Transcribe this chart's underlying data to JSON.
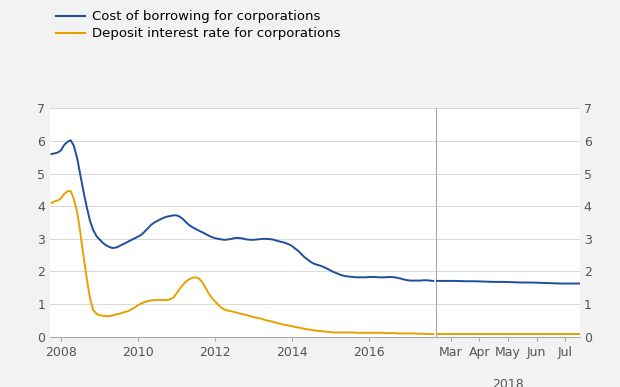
{
  "legend": [
    {
      "label": "Cost of borrowing for corporations",
      "color": "#1f4e9f",
      "lw": 1.5
    },
    {
      "label": "Deposit interest rate for corporations",
      "color": "#e8a000",
      "lw": 1.5
    }
  ],
  "ylim": [
    0,
    7
  ],
  "yticks": [
    0,
    1,
    2,
    3,
    4,
    5,
    6,
    7
  ],
  "left_panel": {
    "xticks_years": [
      2008,
      2010,
      2012,
      2014,
      2016
    ],
    "blue_data": [
      [
        2007.75,
        5.6
      ],
      [
        2007.83,
        5.62
      ],
      [
        2007.92,
        5.65
      ],
      [
        2008.0,
        5.72
      ],
      [
        2008.08,
        5.88
      ],
      [
        2008.17,
        5.98
      ],
      [
        2008.25,
        6.02
      ],
      [
        2008.33,
        5.85
      ],
      [
        2008.42,
        5.45
      ],
      [
        2008.5,
        4.95
      ],
      [
        2008.58,
        4.45
      ],
      [
        2008.67,
        3.95
      ],
      [
        2008.75,
        3.55
      ],
      [
        2008.83,
        3.28
      ],
      [
        2008.92,
        3.08
      ],
      [
        2009.0,
        2.98
      ],
      [
        2009.08,
        2.88
      ],
      [
        2009.17,
        2.8
      ],
      [
        2009.25,
        2.75
      ],
      [
        2009.33,
        2.72
      ],
      [
        2009.42,
        2.73
      ],
      [
        2009.5,
        2.77
      ],
      [
        2009.58,
        2.82
      ],
      [
        2009.67,
        2.87
      ],
      [
        2009.75,
        2.92
      ],
      [
        2009.83,
        2.97
      ],
      [
        2009.92,
        3.02
      ],
      [
        2010.0,
        3.07
      ],
      [
        2010.08,
        3.12
      ],
      [
        2010.17,
        3.22
      ],
      [
        2010.25,
        3.32
      ],
      [
        2010.33,
        3.42
      ],
      [
        2010.42,
        3.5
      ],
      [
        2010.5,
        3.55
      ],
      [
        2010.58,
        3.6
      ],
      [
        2010.67,
        3.65
      ],
      [
        2010.75,
        3.68
      ],
      [
        2010.83,
        3.7
      ],
      [
        2010.92,
        3.72
      ],
      [
        2011.0,
        3.72
      ],
      [
        2011.08,
        3.68
      ],
      [
        2011.17,
        3.6
      ],
      [
        2011.25,
        3.5
      ],
      [
        2011.33,
        3.42
      ],
      [
        2011.42,
        3.35
      ],
      [
        2011.5,
        3.3
      ],
      [
        2011.58,
        3.25
      ],
      [
        2011.67,
        3.2
      ],
      [
        2011.75,
        3.15
      ],
      [
        2011.83,
        3.1
      ],
      [
        2011.92,
        3.05
      ],
      [
        2012.0,
        3.02
      ],
      [
        2012.08,
        3.0
      ],
      [
        2012.17,
        2.98
      ],
      [
        2012.25,
        2.97
      ],
      [
        2012.33,
        2.98
      ],
      [
        2012.42,
        3.0
      ],
      [
        2012.5,
        3.02
      ],
      [
        2012.58,
        3.03
      ],
      [
        2012.67,
        3.02
      ],
      [
        2012.75,
        3.0
      ],
      [
        2012.83,
        2.98
      ],
      [
        2012.92,
        2.97
      ],
      [
        2013.0,
        2.97
      ],
      [
        2013.08,
        2.98
      ],
      [
        2013.17,
        2.99
      ],
      [
        2013.25,
        3.0
      ],
      [
        2013.33,
        3.0
      ],
      [
        2013.42,
        2.99
      ],
      [
        2013.5,
        2.98
      ],
      [
        2013.58,
        2.95
      ],
      [
        2013.67,
        2.92
      ],
      [
        2013.75,
        2.9
      ],
      [
        2013.83,
        2.87
      ],
      [
        2013.92,
        2.83
      ],
      [
        2014.0,
        2.78
      ],
      [
        2014.08,
        2.7
      ],
      [
        2014.17,
        2.62
      ],
      [
        2014.25,
        2.52
      ],
      [
        2014.33,
        2.43
      ],
      [
        2014.42,
        2.35
      ],
      [
        2014.5,
        2.28
      ],
      [
        2014.58,
        2.23
      ],
      [
        2014.67,
        2.2
      ],
      [
        2014.75,
        2.17
      ],
      [
        2014.83,
        2.13
      ],
      [
        2014.92,
        2.08
      ],
      [
        2015.0,
        2.03
      ],
      [
        2015.08,
        1.98
      ],
      [
        2015.17,
        1.94
      ],
      [
        2015.25,
        1.9
      ],
      [
        2015.33,
        1.87
      ],
      [
        2015.42,
        1.85
      ],
      [
        2015.5,
        1.84
      ],
      [
        2015.58,
        1.83
      ],
      [
        2015.67,
        1.82
      ],
      [
        2015.75,
        1.82
      ],
      [
        2015.83,
        1.82
      ],
      [
        2015.92,
        1.82
      ],
      [
        2016.0,
        1.83
      ],
      [
        2016.08,
        1.83
      ],
      [
        2016.17,
        1.83
      ],
      [
        2016.25,
        1.82
      ],
      [
        2016.33,
        1.82
      ],
      [
        2016.42,
        1.82
      ],
      [
        2016.5,
        1.83
      ],
      [
        2016.58,
        1.83
      ],
      [
        2016.67,
        1.82
      ],
      [
        2016.75,
        1.8
      ],
      [
        2016.83,
        1.78
      ],
      [
        2016.92,
        1.75
      ],
      [
        2017.0,
        1.73
      ],
      [
        2017.08,
        1.72
      ],
      [
        2017.17,
        1.72
      ],
      [
        2017.25,
        1.72
      ],
      [
        2017.33,
        1.72
      ],
      [
        2017.42,
        1.73
      ],
      [
        2017.5,
        1.73
      ],
      [
        2017.58,
        1.72
      ],
      [
        2017.67,
        1.71
      ]
    ],
    "gold_data": [
      [
        2007.75,
        4.1
      ],
      [
        2007.83,
        4.15
      ],
      [
        2007.92,
        4.18
      ],
      [
        2008.0,
        4.25
      ],
      [
        2008.08,
        4.38
      ],
      [
        2008.17,
        4.46
      ],
      [
        2008.25,
        4.46
      ],
      [
        2008.33,
        4.22
      ],
      [
        2008.42,
        3.8
      ],
      [
        2008.5,
        3.18
      ],
      [
        2008.58,
        2.48
      ],
      [
        2008.67,
        1.75
      ],
      [
        2008.75,
        1.18
      ],
      [
        2008.83,
        0.82
      ],
      [
        2008.92,
        0.7
      ],
      [
        2009.0,
        0.66
      ],
      [
        2009.08,
        0.64
      ],
      [
        2009.17,
        0.63
      ],
      [
        2009.25,
        0.63
      ],
      [
        2009.33,
        0.65
      ],
      [
        2009.42,
        0.68
      ],
      [
        2009.5,
        0.7
      ],
      [
        2009.58,
        0.73
      ],
      [
        2009.67,
        0.76
      ],
      [
        2009.75,
        0.79
      ],
      [
        2009.83,
        0.84
      ],
      [
        2009.92,
        0.9
      ],
      [
        2010.0,
        0.97
      ],
      [
        2010.08,
        1.02
      ],
      [
        2010.17,
        1.06
      ],
      [
        2010.25,
        1.09
      ],
      [
        2010.33,
        1.11
      ],
      [
        2010.42,
        1.12
      ],
      [
        2010.5,
        1.13
      ],
      [
        2010.58,
        1.13
      ],
      [
        2010.67,
        1.12
      ],
      [
        2010.75,
        1.12
      ],
      [
        2010.83,
        1.15
      ],
      [
        2010.92,
        1.2
      ],
      [
        2011.0,
        1.33
      ],
      [
        2011.08,
        1.47
      ],
      [
        2011.17,
        1.6
      ],
      [
        2011.25,
        1.7
      ],
      [
        2011.33,
        1.76
      ],
      [
        2011.42,
        1.81
      ],
      [
        2011.5,
        1.82
      ],
      [
        2011.58,
        1.78
      ],
      [
        2011.67,
        1.67
      ],
      [
        2011.75,
        1.5
      ],
      [
        2011.83,
        1.33
      ],
      [
        2011.92,
        1.18
      ],
      [
        2012.0,
        1.08
      ],
      [
        2012.08,
        0.98
      ],
      [
        2012.17,
        0.88
      ],
      [
        2012.25,
        0.83
      ],
      [
        2012.33,
        0.8
      ],
      [
        2012.42,
        0.78
      ],
      [
        2012.5,
        0.76
      ],
      [
        2012.58,
        0.73
      ],
      [
        2012.67,
        0.7
      ],
      [
        2012.75,
        0.68
      ],
      [
        2012.83,
        0.66
      ],
      [
        2012.92,
        0.63
      ],
      [
        2013.0,
        0.6
      ],
      [
        2013.08,
        0.58
      ],
      [
        2013.17,
        0.56
      ],
      [
        2013.25,
        0.53
      ],
      [
        2013.33,
        0.5
      ],
      [
        2013.42,
        0.48
      ],
      [
        2013.5,
        0.46
      ],
      [
        2013.58,
        0.43
      ],
      [
        2013.67,
        0.4
      ],
      [
        2013.75,
        0.38
      ],
      [
        2013.83,
        0.36
      ],
      [
        2013.92,
        0.34
      ],
      [
        2014.0,
        0.32
      ],
      [
        2014.08,
        0.3
      ],
      [
        2014.17,
        0.28
      ],
      [
        2014.25,
        0.26
      ],
      [
        2014.33,
        0.24
      ],
      [
        2014.42,
        0.22
      ],
      [
        2014.5,
        0.21
      ],
      [
        2014.58,
        0.19
      ],
      [
        2014.67,
        0.18
      ],
      [
        2014.75,
        0.17
      ],
      [
        2014.83,
        0.16
      ],
      [
        2014.92,
        0.15
      ],
      [
        2015.0,
        0.14
      ],
      [
        2015.08,
        0.13
      ],
      [
        2015.17,
        0.13
      ],
      [
        2015.25,
        0.13
      ],
      [
        2015.33,
        0.13
      ],
      [
        2015.42,
        0.13
      ],
      [
        2015.5,
        0.13
      ],
      [
        2015.58,
        0.13
      ],
      [
        2015.67,
        0.12
      ],
      [
        2015.75,
        0.12
      ],
      [
        2015.83,
        0.12
      ],
      [
        2015.92,
        0.12
      ],
      [
        2016.0,
        0.12
      ],
      [
        2016.08,
        0.12
      ],
      [
        2016.17,
        0.12
      ],
      [
        2016.25,
        0.12
      ],
      [
        2016.33,
        0.12
      ],
      [
        2016.42,
        0.11
      ],
      [
        2016.5,
        0.11
      ],
      [
        2016.58,
        0.11
      ],
      [
        2016.67,
        0.11
      ],
      [
        2016.75,
        0.1
      ],
      [
        2016.83,
        0.1
      ],
      [
        2016.92,
        0.1
      ],
      [
        2017.0,
        0.1
      ],
      [
        2017.08,
        0.1
      ],
      [
        2017.17,
        0.1
      ],
      [
        2017.25,
        0.09
      ],
      [
        2017.33,
        0.09
      ],
      [
        2017.42,
        0.09
      ],
      [
        2017.5,
        0.08
      ],
      [
        2017.58,
        0.08
      ],
      [
        2017.67,
        0.08
      ]
    ]
  },
  "right_panel": {
    "month_labels": [
      "Mar",
      "Apr",
      "May",
      "Jun",
      "Jul"
    ],
    "month_tick_pos": [
      1.5,
      4.5,
      7.5,
      10.5,
      13.5
    ],
    "xlim": [
      0,
      15
    ],
    "xlabel_2018": "2018",
    "blue_data_x": [
      0,
      1,
      2,
      3,
      4,
      5,
      6,
      7,
      8,
      9,
      10,
      11,
      12,
      13,
      14,
      15
    ],
    "blue_data_y": [
      1.71,
      1.71,
      1.71,
      1.7,
      1.7,
      1.69,
      1.68,
      1.68,
      1.67,
      1.66,
      1.66,
      1.65,
      1.64,
      1.63,
      1.63,
      1.63
    ],
    "gold_data_x": [
      0,
      1,
      2,
      3,
      4,
      5,
      6,
      7,
      8,
      9,
      10,
      11,
      12,
      13,
      14,
      15
    ],
    "gold_data_y": [
      0.07,
      0.07,
      0.07,
      0.07,
      0.07,
      0.07,
      0.07,
      0.07,
      0.07,
      0.07,
      0.07,
      0.07,
      0.07,
      0.07,
      0.07,
      0.07
    ]
  },
  "plot_bg_color": "#ffffff",
  "fig_bg_color": "#f2f2f2",
  "grid_color": "#d8d8d8",
  "blue_color": "#1f4e9f",
  "gold_color": "#e8a000",
  "spine_color": "#aaaaaa",
  "tick_color": "#555555",
  "label_fontsize": 9.0,
  "legend_fontsize": 9.5
}
